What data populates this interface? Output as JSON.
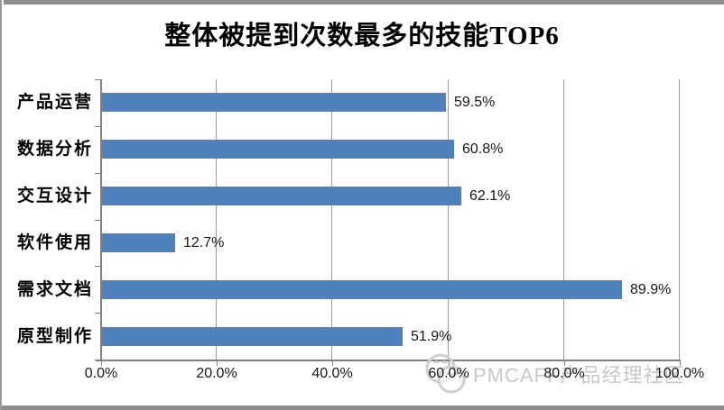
{
  "chart_data": {
    "type": "bar",
    "orientation": "horizontal",
    "title": "整体被提到次数最多的技能TOP6",
    "categories": [
      "产品运营",
      "数据分析",
      "交互设计",
      "软件使用",
      "需求文档",
      "原型制作"
    ],
    "values": [
      59.5,
      60.8,
      62.1,
      12.7,
      89.9,
      51.9
    ],
    "value_labels": [
      "59.5%",
      "60.8%",
      "62.1%",
      "12.7%",
      "89.9%",
      "51.9%"
    ],
    "x_ticks": [
      "0.0%",
      "20.0%",
      "40.0%",
      "60.0%",
      "80.0%",
      "100.0%"
    ],
    "xlim": [
      0,
      100
    ],
    "xlabel": "",
    "ylabel": "",
    "legend": "none",
    "grid": "vertical",
    "bar_color": "#4F81BD",
    "gridline_color": "#9b9b9b",
    "axis_color": "#7f7f7f"
  },
  "watermark": {
    "logo_icon": "pmcaff-smiley-logo",
    "text": "PMCAFF产品经理社区",
    "color": "#c8c8c8"
  }
}
